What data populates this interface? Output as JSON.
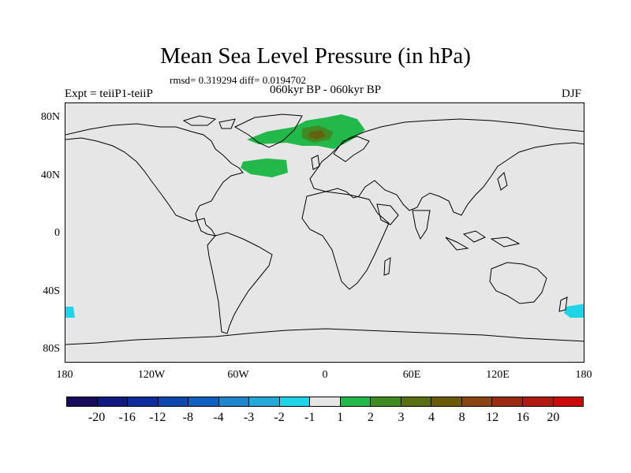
{
  "title": "Mean Sea Level Pressure (in hPa)",
  "stats": "rmsd= 0.319294 diff= 0.0194702",
  "experiment": "Expt = teiiP1-teiiP",
  "period": "060kyr BP - 060kyr BP",
  "season": "DJF",
  "lat_labels": [
    "80N",
    "40N",
    "0",
    "40S",
    "80S"
  ],
  "lon_labels": [
    "180",
    "120W",
    "60W",
    "0",
    "60E",
    "120E",
    "180"
  ],
  "colorbar": {
    "colors": [
      "#1a0a5c",
      "#0f1a80",
      "#0d2d9a",
      "#0d47ad",
      "#1060c0",
      "#1f86cc",
      "#26a8d8",
      "#20d4e8",
      "#e6e6e6",
      "#22b84a",
      "#3f8a22",
      "#5a6e12",
      "#6a5a0a",
      "#8a4412",
      "#9a2a12",
      "#b01a10",
      "#cc0a0a"
    ],
    "labels": [
      "-20",
      "-16",
      "-12",
      "-8",
      "-4",
      "-3",
      "-2",
      "-1",
      "1",
      "2",
      "3",
      "4",
      "8",
      "12",
      "16",
      "20"
    ]
  }
}
